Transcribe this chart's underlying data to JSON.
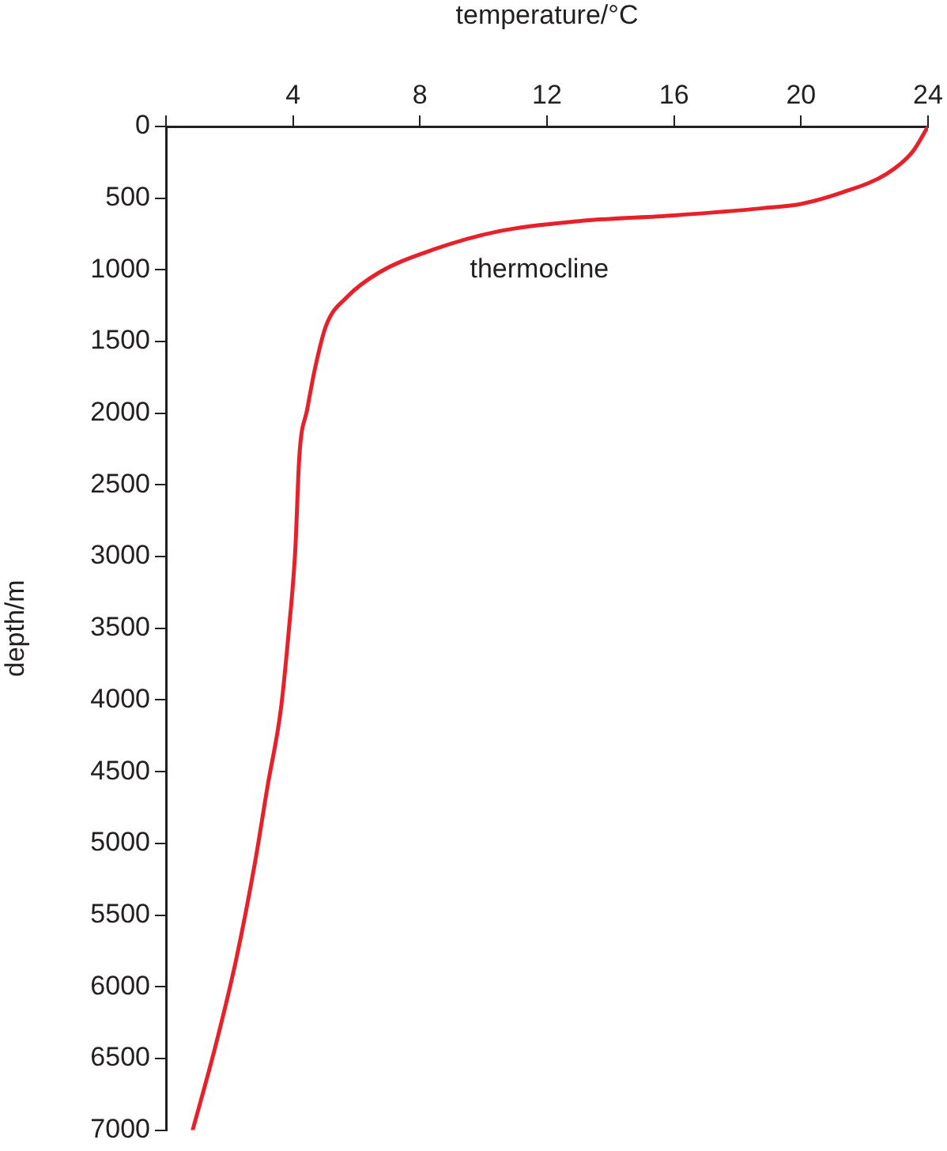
{
  "chart_data": {
    "type": "line",
    "xlabel": "temperature/°C",
    "ylabel": "depth/m",
    "x": [
      24,
      23.5,
      22.7,
      21.3,
      20.0,
      18.8,
      16.0,
      13.0,
      10.5,
      8.4,
      6.7,
      5.7,
      5.04,
      4.7,
      4.45,
      4.2,
      4.07,
      3.87,
      3.62,
      3.2,
      2.79,
      2.21,
      1.54,
      0.84
    ],
    "values": [
      0,
      180,
      330,
      460,
      540,
      570,
      620,
      660,
      730,
      860,
      1020,
      1190,
      1390,
      1680,
      1970,
      2300,
      2960,
      3510,
      4060,
      4600,
      5150,
      5810,
      6430,
      7000
    ],
    "color": "#e8202a",
    "xlim": [
      0,
      24
    ],
    "xticks": [
      {
        "value": 0,
        "label": null
      },
      4,
      8,
      12,
      16,
      20,
      24
    ],
    "ylim": [
      7000,
      0
    ],
    "yticks": [
      0,
      500,
      1000,
      1500,
      2000,
      2500,
      3000,
      3500,
      4000,
      4500,
      5000,
      5500,
      6000,
      6500,
      7000
    ],
    "annotations": [
      "thermocline"
    ]
  }
}
